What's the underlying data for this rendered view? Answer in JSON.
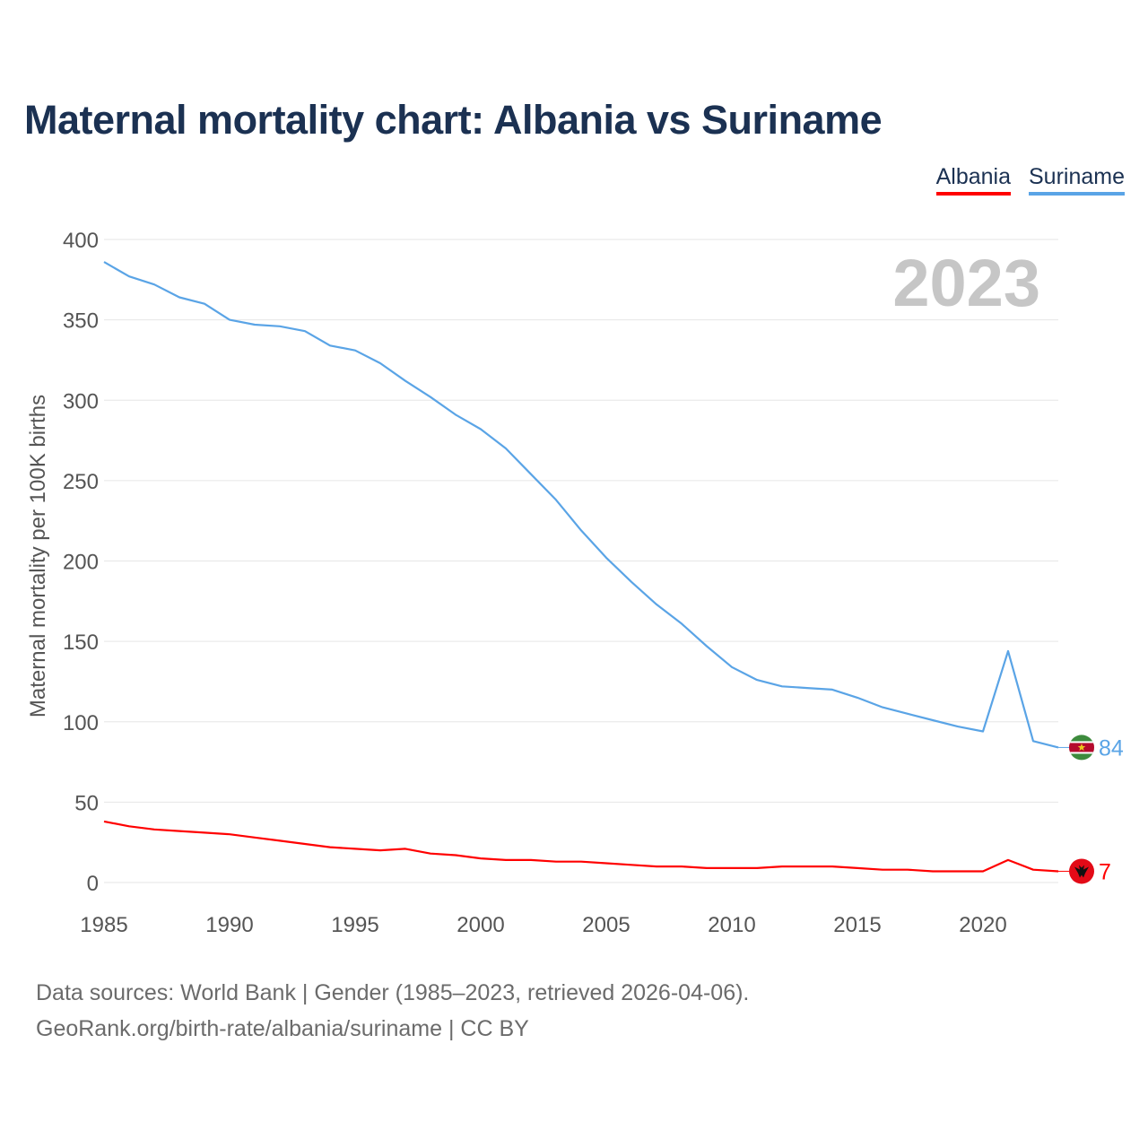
{
  "title": "Maternal mortality chart: Albania vs Suriname",
  "legend": [
    {
      "label": "Albania",
      "color": "#ff0000"
    },
    {
      "label": "Suriname",
      "color": "#5aa4e6"
    }
  ],
  "footer": {
    "line1": "Data sources: World Bank | Gender (1985–2023, retrieved 2026-04-06).",
    "line2": "GeoRank.org/birth-rate/albania/suriname | CC BY"
  },
  "chart_data": {
    "type": "line",
    "ylabel": "Maternal mortality per 100K births",
    "xlabel": "",
    "year_label": "2023",
    "xlim": [
      1985,
      2023
    ],
    "ylim": [
      0,
      400
    ],
    "yticks": [
      0,
      50,
      100,
      150,
      200,
      250,
      300,
      350,
      400
    ],
    "xticks": [
      1985,
      1990,
      1995,
      2000,
      2005,
      2010,
      2015,
      2020
    ],
    "grid": true,
    "x": [
      1985,
      1986,
      1987,
      1988,
      1989,
      1990,
      1991,
      1992,
      1993,
      1994,
      1995,
      1996,
      1997,
      1998,
      1999,
      2000,
      2001,
      2002,
      2003,
      2004,
      2005,
      2006,
      2007,
      2008,
      2009,
      2010,
      2011,
      2012,
      2013,
      2014,
      2015,
      2016,
      2017,
      2018,
      2019,
      2020,
      2021,
      2022,
      2023
    ],
    "series": [
      {
        "name": "Suriname",
        "color": "#5aa4e6",
        "end_label": "84",
        "flag_icon": "suriname-flag-icon",
        "values": [
          386,
          377,
          372,
          364,
          360,
          350,
          347,
          346,
          343,
          334,
          331,
          323,
          312,
          302,
          291,
          282,
          270,
          254,
          238,
          219,
          202,
          187,
          173,
          161,
          147,
          134,
          126,
          122,
          121,
          120,
          115,
          109,
          105,
          101,
          97,
          94,
          144,
          88,
          84
        ]
      },
      {
        "name": "Albania",
        "color": "#ff0000",
        "end_label": "7",
        "flag_icon": "albania-flag-icon",
        "values": [
          38,
          35,
          33,
          32,
          31,
          30,
          28,
          26,
          24,
          22,
          21,
          20,
          21,
          18,
          17,
          15,
          14,
          14,
          13,
          13,
          12,
          11,
          10,
          10,
          9,
          9,
          9,
          10,
          10,
          10,
          9,
          8,
          8,
          7,
          7,
          7,
          14,
          8,
          7
        ]
      }
    ]
  }
}
